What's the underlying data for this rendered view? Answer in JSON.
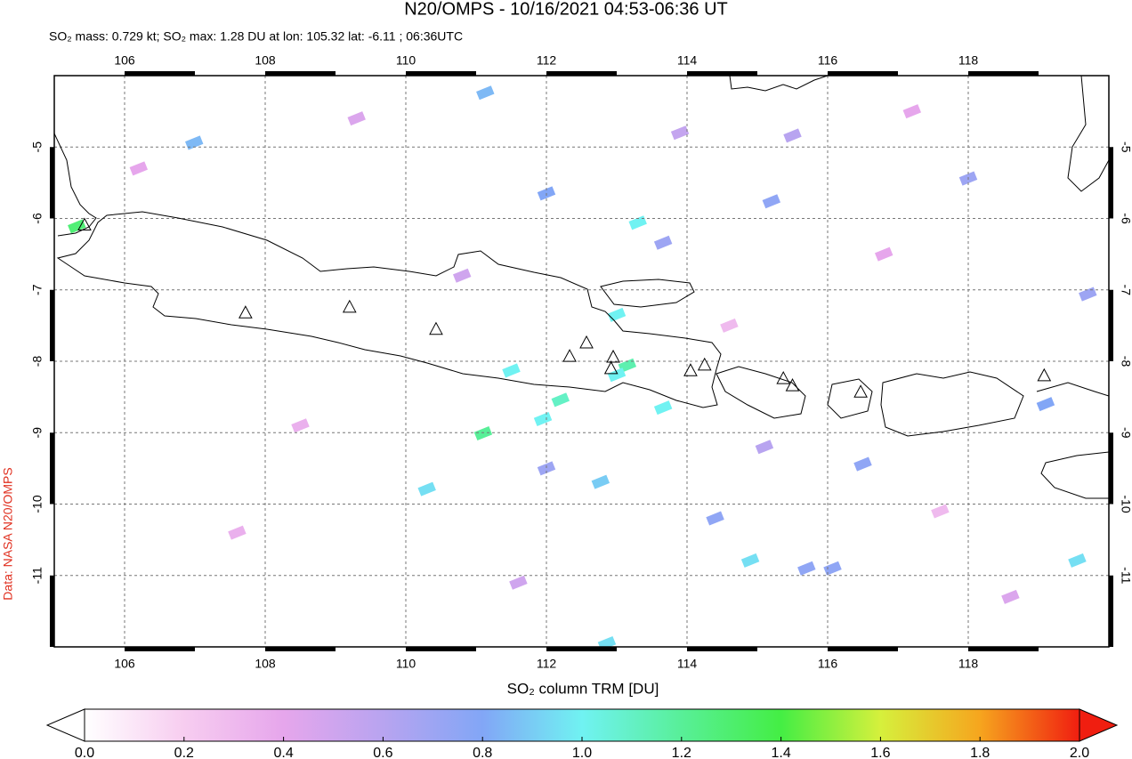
{
  "chart_data": {
    "type": "map",
    "title": "N20/OMPS - 10/16/2021 04:53-06:36 UT",
    "subtitle": "SO₂ mass: 0.729 kt; SO₂ max: 1.28 DU at lon: 105.32 lat: -6.11 ; 06:36UTC",
    "credit": "Data: NASA N20/OMPS",
    "xlim": [
      105,
      120
    ],
    "ylim": [
      -12,
      -4
    ],
    "xticks": [
      106,
      108,
      110,
      112,
      114,
      116,
      118
    ],
    "yticks": [
      -5,
      -6,
      -7,
      -8,
      -9,
      -10,
      -11
    ],
    "grid": true,
    "pixels": {
      "lon": [
        105.32,
        113.3,
        113.0,
        113.15,
        113.0,
        111.5,
        112.2,
        111.95,
        111.1,
        113.66,
        111.13,
        112.0,
        110.3,
        114.9,
        119.55,
        119.1,
        115.2,
        115.7,
        116.07,
        116.5,
        114.4,
        112.0,
        113.66,
        118.0,
        119.7,
        112.77,
        115.5,
        112.86,
        106.99,
        106.2,
        107.6,
        109.3,
        110.8,
        113.9,
        115.1,
        116.8,
        117.6,
        118.6,
        108.5,
        111.6,
        114.6,
        117.2
      ],
      "lat": [
        -6.11,
        -6.06,
        -7.35,
        -8.06,
        -8.19,
        -8.13,
        -8.54,
        -8.81,
        -9.01,
        -8.65,
        -4.24,
        -5.65,
        -9.79,
        -10.79,
        -10.79,
        -8.6,
        -5.76,
        -10.9,
        -10.9,
        -9.44,
        -10.2,
        -9.5,
        -6.34,
        -5.44,
        -7.06,
        -9.69,
        -4.84,
        -11.95,
        -4.94,
        -5.3,
        -10.4,
        -4.6,
        -6.8,
        -4.8,
        -9.2,
        -6.5,
        -10.1,
        -11.3,
        -8.9,
        -11.1,
        -7.5,
        -4.5
      ],
      "values": [
        1.28,
        1.0,
        1.0,
        1.15,
        1.0,
        1.0,
        1.1,
        1.0,
        1.2,
        1.0,
        0.85,
        0.8,
        0.95,
        0.95,
        0.95,
        0.8,
        0.75,
        0.75,
        0.75,
        0.75,
        0.75,
        0.7,
        0.7,
        0.7,
        0.7,
        0.9,
        0.6,
        0.95,
        0.85,
        0.4,
        0.35,
        0.45,
        0.5,
        0.55,
        0.6,
        0.4,
        0.3,
        0.45,
        0.35,
        0.5,
        0.3,
        0.4
      ]
    },
    "volcanoes": {
      "lon": [
        105.43,
        107.72,
        109.2,
        110.43,
        112.33,
        112.57,
        112.95,
        112.92,
        114.05,
        114.25,
        115.37,
        115.5,
        116.47,
        119.08
      ],
      "lat": [
        -6.1,
        -7.33,
        -7.25,
        -7.56,
        -7.94,
        -7.75,
        -7.95,
        -8.11,
        -8.14,
        -8.06,
        -8.25,
        -8.35,
        -8.44,
        -8.21
      ]
    },
    "colorbar": {
      "label": "SO₂ column TRM [DU]",
      "lim": [
        0,
        2
      ],
      "ticks": [
        {
          "value": 0,
          "label": "0.0"
        },
        {
          "value": 0.2,
          "label": "0.2"
        },
        {
          "value": 0.4,
          "label": "0.4"
        },
        {
          "value": 0.6,
          "label": "0.6"
        },
        {
          "value": 0.8,
          "label": "0.8"
        },
        {
          "value": 1,
          "label": "1.0"
        },
        {
          "value": 1.2,
          "label": "1.2"
        },
        {
          "value": 1.4,
          "label": "1.4"
        },
        {
          "value": 1.6,
          "label": "1.6"
        },
        {
          "value": 1.8,
          "label": "1.8"
        },
        {
          "value": 2,
          "label": "2.0"
        }
      ],
      "colors": [
        "#ffffff",
        "#f7cdf0",
        "#e6a6ec",
        "#b8a4f0",
        "#82a6f6",
        "#70f2f2",
        "#58ef98",
        "#44ee44",
        "#d6f03c",
        "#f6a51e",
        "#f01e10"
      ]
    }
  }
}
